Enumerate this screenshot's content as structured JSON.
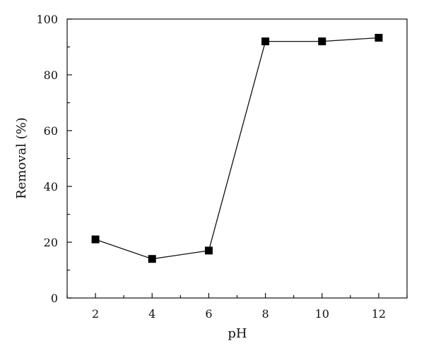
{
  "chart_data": {
    "type": "line",
    "title": "",
    "xlabel": "pH",
    "ylabel": "Removal (%)",
    "xlim": [
      1,
      13
    ],
    "ylim": [
      0,
      100
    ],
    "x_ticks": [
      "2",
      "4",
      "6",
      "8",
      "10",
      "12"
    ],
    "y_ticks": [
      "0",
      "20",
      "40",
      "60",
      "80",
      "100"
    ],
    "grid": false,
    "marker": "square",
    "colors": {
      "line": "#111111",
      "marker": "#000000",
      "axis": "#111111"
    },
    "series": [
      {
        "x": [
          2,
          4,
          6,
          8,
          10,
          12
        ],
        "y": [
          21,
          14,
          17,
          92,
          92,
          93.3
        ]
      }
    ]
  }
}
